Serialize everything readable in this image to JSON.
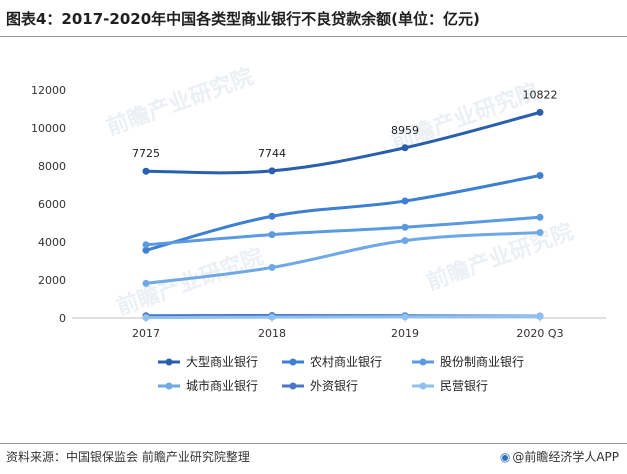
{
  "title": "图表4：2017-2020年中国各类型商业银行不良贷款余额(单位：亿元)",
  "source": "资料来源：中国银保监会 前瞻产业研究院整理",
  "brand": {
    "icon": "brand-logo-icon",
    "text": "@前瞻经济学人APP"
  },
  "watermark": "前瞻产业研究院",
  "colors": {
    "dark_blue": "#2a5fae",
    "mid_blue": "#3d7fd1",
    "light_blue": "#5b9ae0",
    "pale_blue": "#6ea8e6",
    "steel_blue": "#4a78c8",
    "sky_blue": "#8ec0f0"
  },
  "chart_data": {
    "type": "line",
    "categories": [
      "2017",
      "2018",
      "2019",
      "2020 Q3"
    ],
    "ylim": [
      0,
      12000
    ],
    "yticks": [
      0,
      2000,
      4000,
      6000,
      8000,
      10000,
      12000
    ],
    "grid": false,
    "legend_position": "bottom",
    "series": [
      {
        "name": "大型商业银行",
        "values": [
          7725,
          7744,
          8959,
          10822
        ],
        "color": "#2a5fae",
        "labels": [
          "7725",
          "7744",
          "8959",
          "10822"
        ]
      },
      {
        "name": "农村商业银行",
        "values": [
          3566,
          5354,
          6155,
          7500
        ],
        "color": "#3d7fd1"
      },
      {
        "name": "股份制商业银行",
        "values": [
          3852,
          4388,
          4777,
          5300
        ],
        "color": "#5b9ae0"
      },
      {
        "name": "城市商业银行",
        "values": [
          1823,
          2660,
          4074,
          4500
        ],
        "color": "#6ea8e6"
      },
      {
        "name": "外资银行",
        "values": [
          118,
          130,
          120,
          100
        ],
        "color": "#4a78c8"
      },
      {
        "name": "民营银行",
        "values": [
          20,
          45,
          62,
          80
        ],
        "color": "#8ec0f0"
      }
    ]
  }
}
